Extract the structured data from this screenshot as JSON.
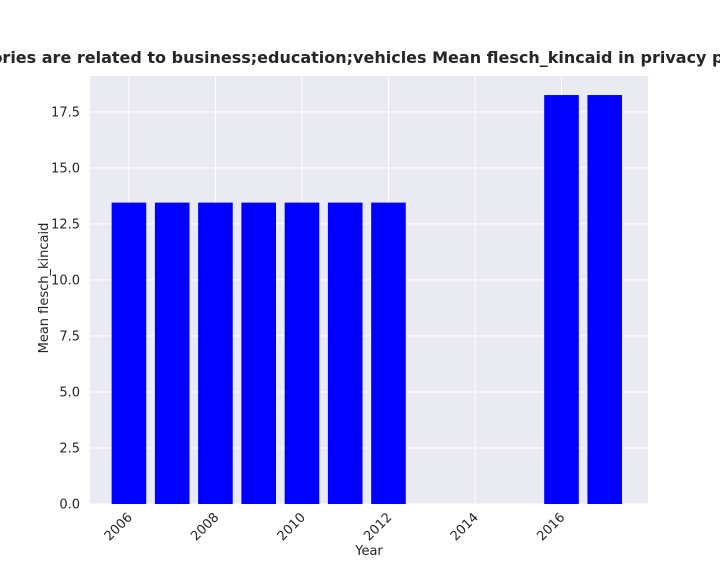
{
  "chart_data": {
    "type": "bar",
    "title": "categories are related to business;education;vehicles Mean flesch_kincaid in privacy policies",
    "xlabel": "Year",
    "ylabel": "Mean flesch_kincaid",
    "x": [
      2006,
      2007,
      2008,
      2009,
      2010,
      2011,
      2012,
      2016,
      2017
    ],
    "values": [
      13.45,
      13.45,
      13.45,
      13.45,
      13.45,
      13.45,
      13.45,
      18.25,
      18.25
    ],
    "xlim": [
      2005.1,
      2018.0
    ],
    "ylim": [
      0,
      19.1
    ],
    "xticks": [
      2006,
      2008,
      2010,
      2012,
      2014,
      2016
    ],
    "xtick_labels": [
      "2006",
      "2008",
      "2010",
      "2012",
      "2014",
      "2016"
    ],
    "yticks": [
      0.0,
      2.5,
      5.0,
      7.5,
      10.0,
      12.5,
      15.0,
      17.5
    ],
    "ytick_labels": [
      "0.0",
      "2.5",
      "5.0",
      "7.5",
      "10.0",
      "12.5",
      "15.0",
      "17.5"
    ],
    "grid": true,
    "legend": "none",
    "colors": {
      "bar": "#0000ff",
      "plot_background": "#eaeaf2",
      "grid": "#ffffff",
      "text": "#262626"
    }
  }
}
